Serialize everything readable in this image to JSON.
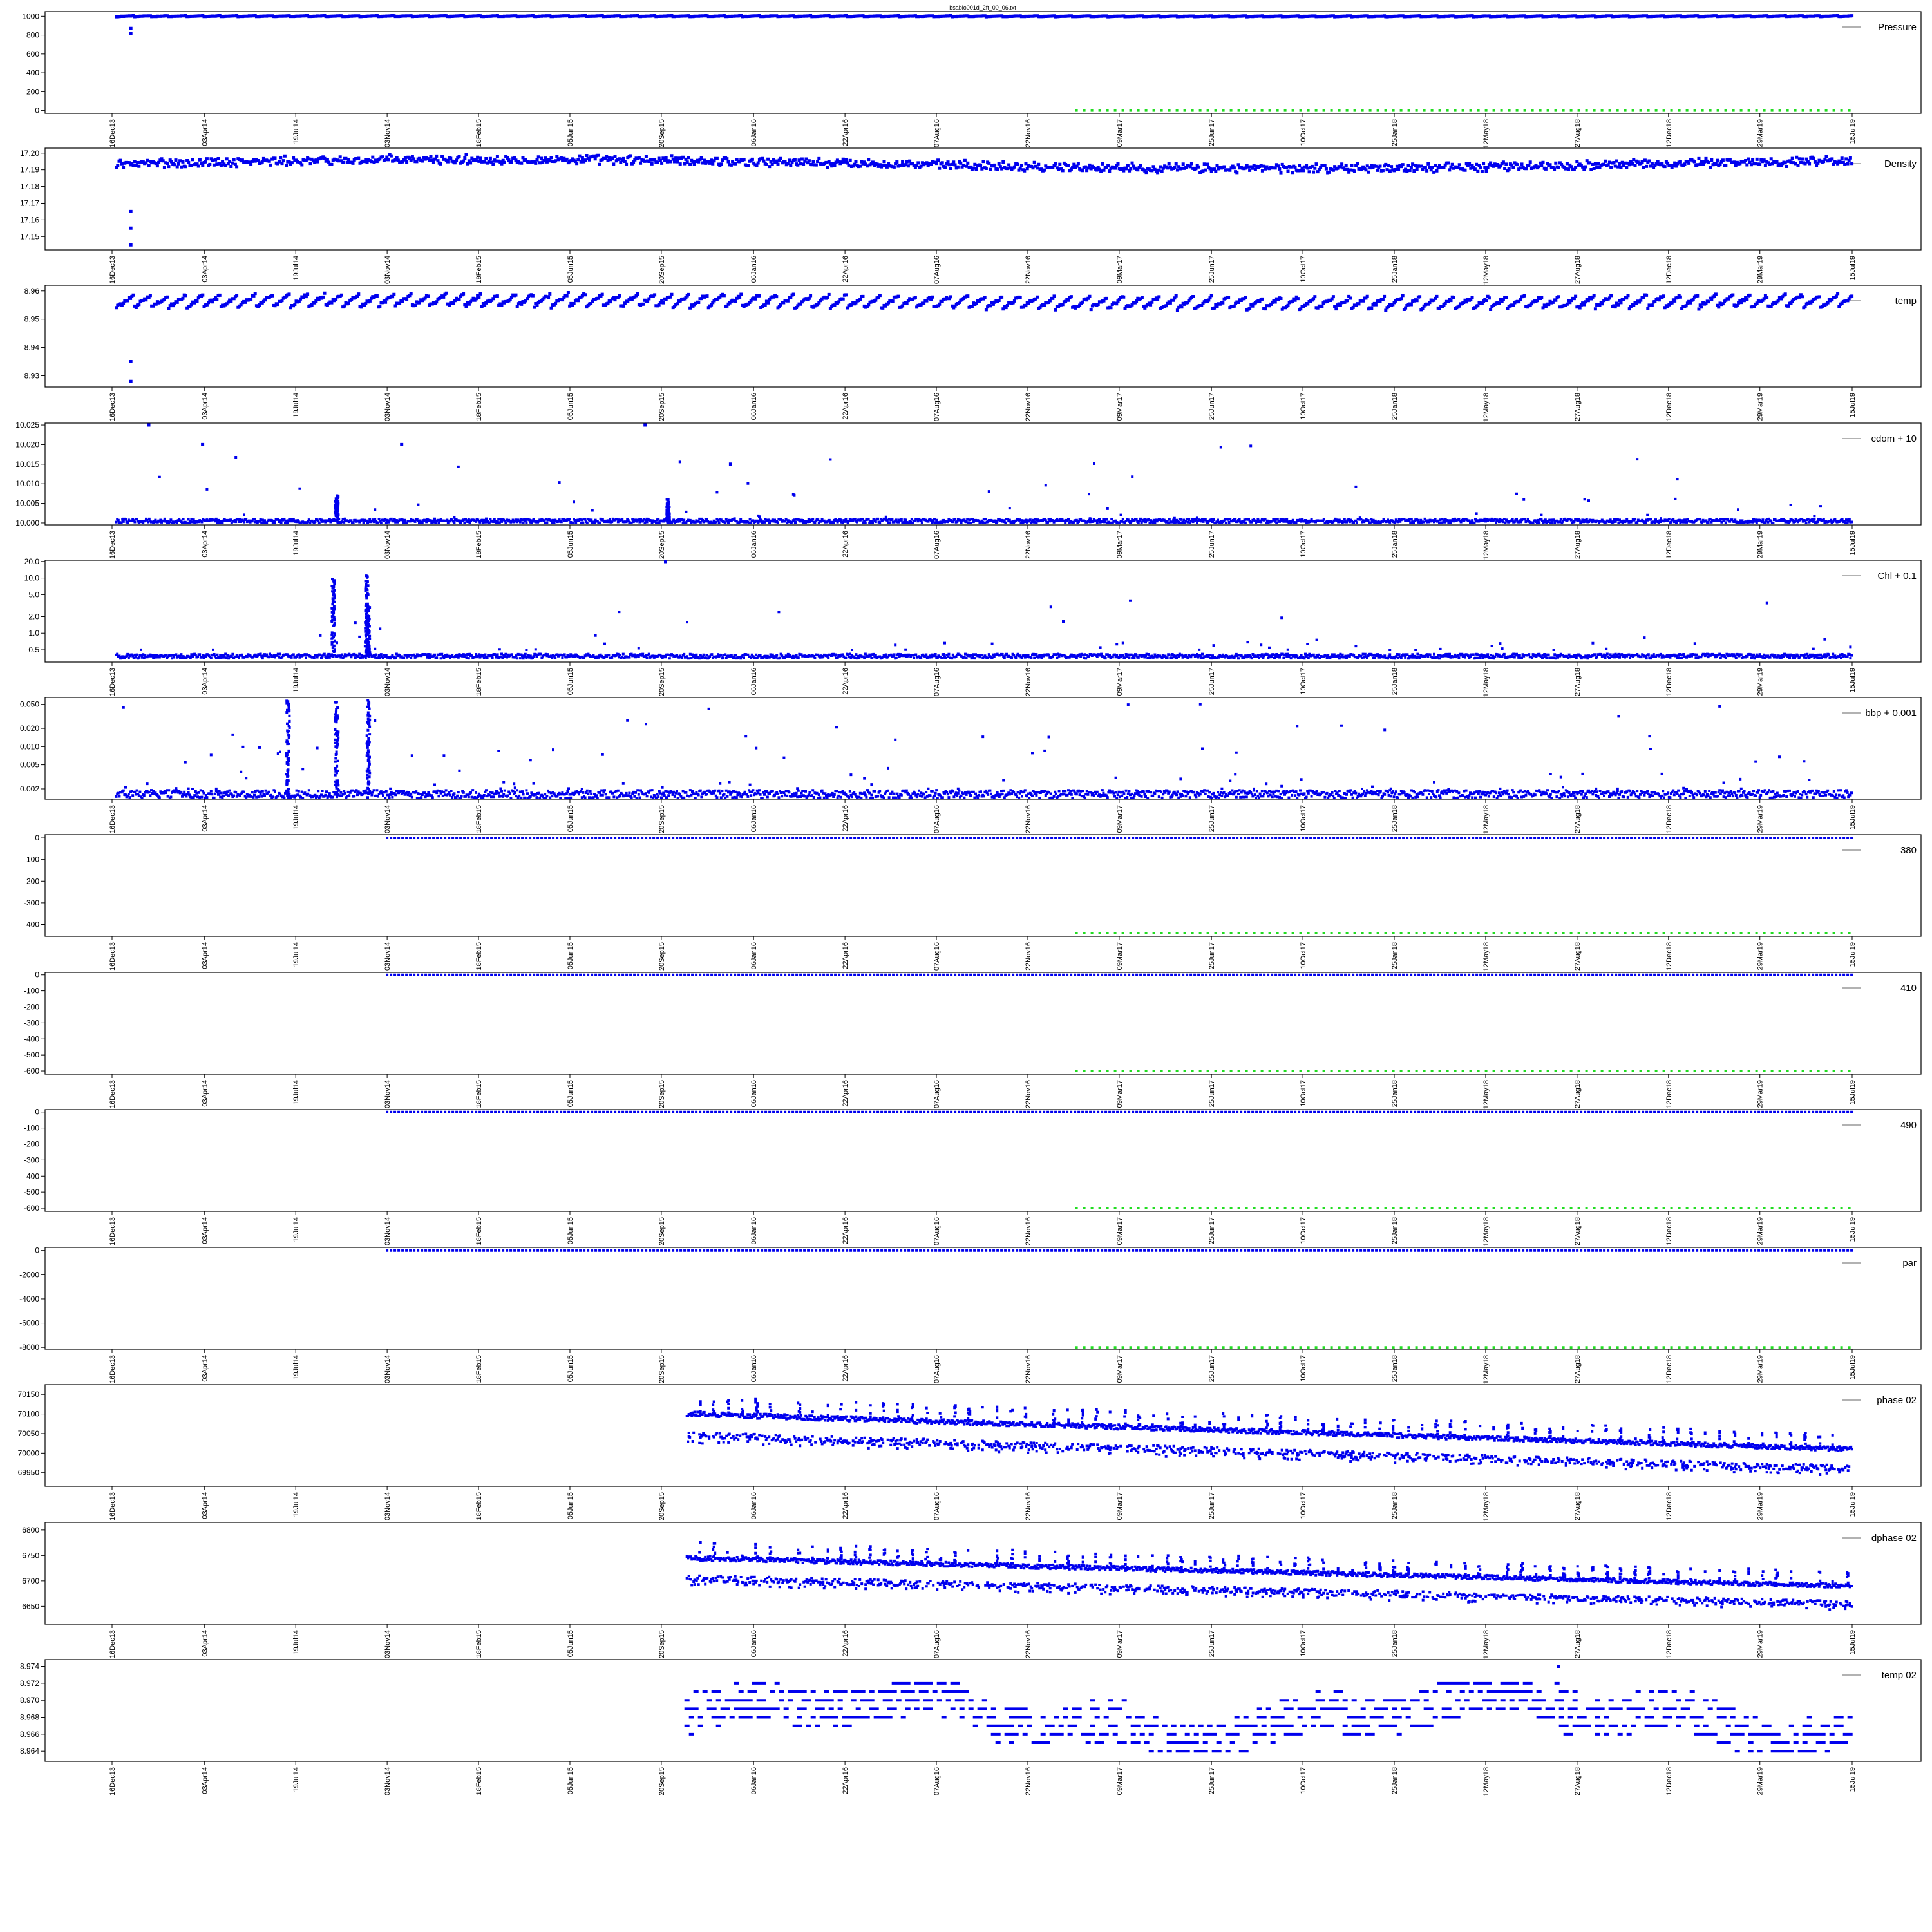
{
  "figure": {
    "title": "bsabio001d_2ft_00_06.txt"
  },
  "colors": {
    "series": "#0000ee",
    "flag": "#22dd22",
    "axis": "#000000"
  },
  "date_ticks": [
    "16Dec13",
    "03Apr14",
    "19Jul14",
    "03Nov14",
    "18Feb15",
    "05Jun15",
    "20Sep15",
    "06Jan16",
    "22Apr16",
    "07Aug16",
    "22Nov16",
    "09Mar17",
    "25Jun17",
    "10Oct17",
    "25Jan18",
    "12May18",
    "27Aug18",
    "12Dec18",
    "29Mar19",
    "15Jul19"
  ],
  "chart_data": [
    {
      "type": "scatter",
      "legend": "Pressure",
      "yticks": [
        "0",
        "200",
        "400",
        "600",
        "800",
        "1000"
      ],
      "ylim": [
        -30,
        1050
      ],
      "x_range": [
        "16Dec13",
        "15Jul19"
      ],
      "series": [
        {
          "name": "Pressure",
          "x_start": "21Dec13",
          "x_end": "15Jul19",
          "value": 1000,
          "range": [
            990,
            1010
          ],
          "pattern": "sawtooth",
          "outliers": [
            {
              "x": "07Jan14",
              "y": 820
            },
            {
              "x": "07Jan14",
              "y": 870
            }
          ]
        },
        {
          "flag": true,
          "x_start": "18Jan17",
          "x_end": "15Jul19",
          "value": 0
        }
      ]
    },
    {
      "type": "scatter",
      "legend": "Density",
      "yticks": [
        "17.15",
        "17.16",
        "17.17",
        "17.18",
        "17.19",
        "17.20"
      ],
      "ylim": [
        17.142,
        17.203
      ],
      "x_range": [
        "16Dec13",
        "15Jul19"
      ],
      "series": [
        {
          "name": "Density",
          "x_start": "21Dec13",
          "x_end": "15Jul19",
          "value": 17.195,
          "range": [
            17.186,
            17.201
          ],
          "pattern": "noisy",
          "outliers": [
            {
              "x": "07Jan14",
              "y": 17.145
            },
            {
              "x": "07Jan14",
              "y": 17.155
            },
            {
              "x": "07Jan14",
              "y": 17.165
            }
          ]
        }
      ]
    },
    {
      "type": "scatter",
      "legend": "temp",
      "yticks": [
        "8.93",
        "8.94",
        "8.95",
        "8.96"
      ],
      "ylim": [
        8.926,
        8.962
      ],
      "x_range": [
        "16Dec13",
        "15Jul19"
      ],
      "series": [
        {
          "name": "temp",
          "x_start": "21Dec13",
          "x_end": "15Jul19",
          "value": 8.955,
          "range": [
            8.951,
            8.961
          ],
          "pattern": "sawtooth",
          "outliers": [
            {
              "x": "07Jan14",
              "y": 8.928
            },
            {
              "x": "07Jan14",
              "y": 8.935
            }
          ]
        }
      ]
    },
    {
      "type": "scatter",
      "legend": "cdom + 10",
      "yticks": [
        "10.000",
        "10.005",
        "10.010",
        "10.015",
        "10.020",
        "10.025"
      ],
      "ylim": [
        9.9995,
        10.0255
      ],
      "x_range": [
        "16Dec13",
        "15Jul19"
      ],
      "series": [
        {
          "name": "cdom + 10",
          "x_start": "21Dec13",
          "x_end": "15Jul19",
          "value": 10.0,
          "range": [
            10.0,
            10.001
          ],
          "pattern": "flat",
          "spike_density": 0.035,
          "spike_range": [
            10.001,
            10.02
          ],
          "clusters": [
            {
              "x": "05Sep14",
              "to": 10.007
            },
            {
              "x": "28Sep15",
              "to": 10.006
            }
          ],
          "outliers": [
            {
              "x": "28Jan14",
              "y": 10.025
            },
            {
              "x": "01Apr14",
              "y": 10.02
            },
            {
              "x": "20Nov14",
              "y": 10.02
            },
            {
              "x": "01Sep15",
              "y": 10.025
            },
            {
              "x": "10Dec15",
              "y": 10.015
            }
          ]
        }
      ]
    },
    {
      "type": "scatter",
      "legend": "Chl + 0.1",
      "scale": "log",
      "yticks": [
        "0.5",
        "1.0",
        "2.0",
        "5.0",
        "10.0",
        "20.0"
      ],
      "ylim": [
        0.3,
        21
      ],
      "x_range": [
        "16Dec13",
        "15Jul19"
      ],
      "series": [
        {
          "name": "Chl + 0.1",
          "x_start": "21Dec13",
          "x_end": "15Jul19",
          "value": 0.38,
          "range": [
            0.35,
            0.42
          ],
          "pattern": "flat",
          "spike_density": 0.035,
          "spike_range": [
            0.5,
            5
          ],
          "clusters": [
            {
              "x": "01Sep14",
              "to": 10
            },
            {
              "x": "10Oct14",
              "to": 11
            },
            {
              "x": "12Oct14",
              "to": 3
            }
          ],
          "outliers": [
            {
              "x": "25Sep15",
              "y": 20
            }
          ]
        }
      ]
    },
    {
      "type": "scatter",
      "legend": "bbp + 0.001",
      "scale": "log",
      "yticks": [
        "0.002",
        "0.005",
        "0.010",
        "0.020",
        "0.050"
      ],
      "ylim": [
        0.00135,
        0.065
      ],
      "x_range": [
        "16Dec13",
        "15Jul19"
      ],
      "series": [
        {
          "name": "bbp + 0.001",
          "x_start": "21Dec13",
          "x_end": "15Jul19",
          "value": 0.0016,
          "range": [
            0.0014,
            0.0019
          ],
          "pattern": "flat",
          "spike_density": 0.06,
          "spike_range": [
            0.002,
            0.05
          ],
          "clusters": [
            {
              "x": "10Jul14",
              "to": 0.06
            },
            {
              "x": "05Sep14",
              "to": 0.06
            },
            {
              "x": "12Oct14",
              "to": 0.06
            }
          ],
          "outliers": []
        }
      ]
    },
    {
      "type": "scatter",
      "legend": "380",
      "yticks": [
        "-400",
        "-300",
        "-200",
        "-100",
        "0"
      ],
      "ylim": [
        -455,
        15
      ],
      "x_range": [
        "16Dec13",
        "15Jul19"
      ],
      "series": [
        {
          "name": "380",
          "x_start": "03Nov14",
          "x_end": "15Jul19",
          "value": 0,
          "pattern": "line"
        },
        {
          "flag": true,
          "x_start": "18Jan17",
          "x_end": "15Jul19",
          "value": -440
        }
      ]
    },
    {
      "type": "scatter",
      "legend": "410",
      "yticks": [
        "-600",
        "-500",
        "-400",
        "-300",
        "-200",
        "-100",
        "0"
      ],
      "ylim": [
        -620,
        15
      ],
      "x_range": [
        "16Dec13",
        "15Jul19"
      ],
      "series": [
        {
          "name": "410",
          "x_start": "03Nov14",
          "x_end": "15Jul19",
          "value": 0,
          "pattern": "line"
        },
        {
          "flag": true,
          "x_start": "18Jan17",
          "x_end": "15Jul19",
          "value": -600
        }
      ]
    },
    {
      "type": "scatter",
      "legend": "490",
      "yticks": [
        "-600",
        "-500",
        "-400",
        "-300",
        "-200",
        "-100",
        "0"
      ],
      "ylim": [
        -620,
        15
      ],
      "x_range": [
        "16Dec13",
        "15Jul19"
      ],
      "series": [
        {
          "name": "490",
          "x_start": "03Nov14",
          "x_end": "15Jul19",
          "value": 0,
          "pattern": "line"
        },
        {
          "flag": true,
          "x_start": "18Jan17",
          "x_end": "15Jul19",
          "value": -600
        }
      ]
    },
    {
      "type": "scatter",
      "legend": "par",
      "yticks": [
        "-8000",
        "-6000",
        "-4000",
        "-2000",
        "0"
      ],
      "ylim": [
        -8150,
        250
      ],
      "x_range": [
        "16Dec13",
        "15Jul19"
      ],
      "series": [
        {
          "name": "par",
          "x_start": "03Nov14",
          "x_end": "15Jul19",
          "value": 0,
          "pattern": "line"
        },
        {
          "flag": true,
          "x_start": "18Jan17",
          "x_end": "15Jul19",
          "value": -8000
        }
      ]
    },
    {
      "type": "scatter",
      "legend": "phase 02",
      "yticks": [
        "69950",
        "70000",
        "70050",
        "70100",
        "70150"
      ],
      "ylim": [
        69915,
        70175
      ],
      "x_range": [
        "16Dec13",
        "15Jul19"
      ],
      "series": [
        {
          "name": "phase 02",
          "x_start": "20Oct15",
          "x_end": "15Jul19",
          "value_start": 70100,
          "value_end": 70010,
          "lower_start": 70045,
          "lower_end": 69960,
          "pattern": "phase"
        }
      ]
    },
    {
      "type": "scatter",
      "legend": "dphase 02",
      "yticks": [
        "6650",
        "6700",
        "6750",
        "6800"
      ],
      "ylim": [
        6615,
        6815
      ],
      "x_range": [
        "16Dec13",
        "15Jul19"
      ],
      "series": [
        {
          "name": "dphase 02",
          "x_start": "20Oct15",
          "x_end": "15Jul19",
          "value_start": 6745,
          "value_end": 6690,
          "lower_start": 6705,
          "lower_end": 6655,
          "pattern": "phase"
        }
      ]
    },
    {
      "type": "scatter",
      "legend": "temp 02",
      "yticks": [
        "8.964",
        "8.966",
        "8.968",
        "8.970",
        "8.972",
        "8.974"
      ],
      "ylim": [
        8.9628,
        8.9748
      ],
      "x_range": [
        "16Dec13",
        "15Jul19"
      ],
      "series": [
        {
          "name": "temp 02",
          "x_start": "20Oct15",
          "x_end": "15Jul19",
          "value": 8.968,
          "range": [
            8.964,
            8.972
          ],
          "pattern": "quantized",
          "step": 0.001,
          "peak": {
            "x": "05Aug18",
            "y": 8.974
          }
        }
      ]
    }
  ]
}
